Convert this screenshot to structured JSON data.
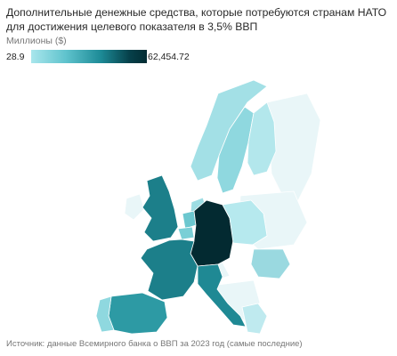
{
  "title": "Дополнительные денежные средства, которые потребуются странам НАТО для достижения целевого показателя в 3,5% ВВП",
  "subtitle": "Миллионы ($)",
  "legend": {
    "min_label": "28.9",
    "max_label": "62,454.72",
    "min_value": 28.9,
    "max_value": 62454.72,
    "color_low": "#a9e6ec",
    "color_high": "#032c33"
  },
  "source": "Источник: данные Всемирного банка о ВВП за 2023 год (самые последние)",
  "map": {
    "region": "Europe",
    "scale": "continuous",
    "countries": [
      {
        "id": "germany",
        "level": 1.0,
        "color": "#032a31"
      },
      {
        "id": "france",
        "level": 0.45,
        "color": "#1c7f8a"
      },
      {
        "id": "united-kingdom",
        "level": 0.45,
        "color": "#1c7f8a"
      },
      {
        "id": "italy",
        "level": 0.4,
        "color": "#1f8994"
      },
      {
        "id": "spain",
        "level": 0.35,
        "color": "#2d9aa4"
      },
      {
        "id": "portugal",
        "level": 0.1,
        "color": "#8fd8df"
      },
      {
        "id": "poland",
        "level": 0.08,
        "color": "#b6e9ee"
      },
      {
        "id": "netherlands",
        "level": 0.15,
        "color": "#6cc7cf"
      },
      {
        "id": "belgium",
        "level": 0.12,
        "color": "#7acfd6"
      },
      {
        "id": "norway",
        "level": 0.08,
        "color": "#a3e0e6"
      },
      {
        "id": "sweden",
        "level": 0.1,
        "color": "#8fd8df"
      },
      {
        "id": "finland",
        "level": 0.06,
        "color": "#b3e7ec"
      },
      {
        "id": "denmark",
        "level": 0.08,
        "color": "#9ddde3"
      },
      {
        "id": "romania",
        "level": 0.1,
        "color": "#9ad9e0"
      },
      {
        "id": "greece",
        "level": 0.04,
        "color": "#bfeaef"
      }
    ]
  }
}
